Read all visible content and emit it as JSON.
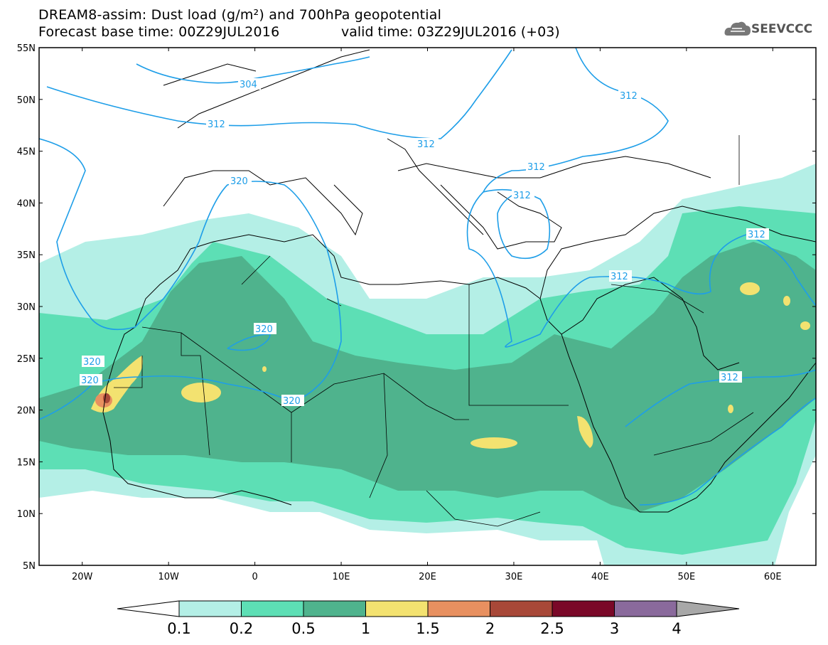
{
  "title": {
    "line1": "DREAM8-assim: Dust load (g/m²) and 700hPa geopotential",
    "line2a": "Forecast base time: 00Z29JUL2016",
    "line2b": "valid time: 03Z29JUL2016 (+03)"
  },
  "logo": {
    "text": "SEEVCCC",
    "icon": "cloud-icon"
  },
  "map": {
    "lat_labels": [
      "55N",
      "50N",
      "45N",
      "40N",
      "35N",
      "30N",
      "25N",
      "20N",
      "15N",
      "10N",
      "5N"
    ],
    "lon_labels": [
      "20W",
      "10W",
      "0",
      "10E",
      "20E",
      "30E",
      "40E",
      "50E",
      "60E"
    ],
    "lon_range": [
      -25,
      65
    ],
    "lat_range": [
      5,
      55
    ],
    "contour_labels": [
      "304",
      "312",
      "312",
      "312",
      "312",
      "312",
      "312",
      "312",
      "312",
      "320",
      "320",
      "320",
      "320",
      "320"
    ]
  },
  "colorbar": {
    "levels": [
      "0.1",
      "0.2",
      "0.5",
      "1",
      "1.5",
      "2",
      "2.5",
      "3",
      "4"
    ],
    "colors": [
      "#b4efe6",
      "#5ddfb5",
      "#4fb38d",
      "#f3e270",
      "#e89060",
      "#a84838",
      "#7a0828",
      "#8a6a9c",
      "#a8a8a8"
    ],
    "under_color": "#ffffff"
  },
  "colors": {
    "contour": "#1e9ee8",
    "border": "#000000"
  }
}
